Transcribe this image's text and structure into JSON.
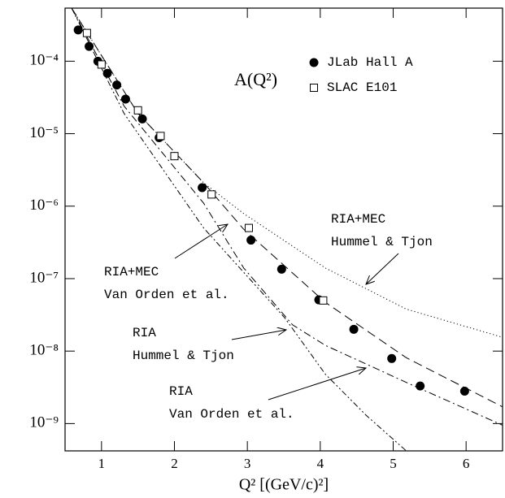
{
  "chart_data": {
    "type": "scatter",
    "inner_label": "A(Q²)",
    "x_label": "Q²  [(GeV/c)²]",
    "xlim": [
      0.5,
      6.5
    ],
    "xticks": [
      1,
      2,
      3,
      4,
      5,
      6
    ],
    "ylim": [
      4.2e-10,
      0.00054
    ],
    "log_y": true,
    "yticks": [
      {
        "value": 0.0001,
        "label": "10⁻⁴"
      },
      {
        "value": 1e-05,
        "label": "10⁻⁵"
      },
      {
        "value": 1e-06,
        "label": "10⁻⁶"
      },
      {
        "value": 1e-07,
        "label": "10⁻⁷"
      },
      {
        "value": 1e-08,
        "label": "10⁻⁸"
      },
      {
        "value": 1e-09,
        "label": "10⁻⁹"
      }
    ],
    "legend": "upper right",
    "series": [
      {
        "name": "JLab Hall A",
        "marker": "circle",
        "color": "#000000",
        "x": [
          0.68,
          0.83,
          0.95,
          1.08,
          1.21,
          1.33,
          1.56,
          1.79,
          2.38,
          3.05,
          3.47,
          3.98,
          4.46,
          4.98,
          5.37,
          5.98
        ],
        "values": [
          0.00027,
          0.00016,
          0.0001,
          6.8e-05,
          4.7e-05,
          3e-05,
          1.6e-05,
          8.8e-06,
          1.8e-06,
          3.4e-07,
          1.35e-07,
          5.1e-08,
          2e-08,
          7.9e-09,
          3.3e-09,
          2.8e-09
        ]
      },
      {
        "name": "SLAC E101",
        "marker": "square",
        "color": "#000000",
        "x": [
          0.8,
          1.0,
          1.5,
          1.81,
          2.0,
          2.51,
          3.02,
          4.04
        ],
        "values": [
          0.000245,
          9e-05,
          2.1e-05,
          9.3e-06,
          4.9e-06,
          1.45e-06,
          5e-07,
          5e-08
        ]
      }
    ],
    "curves": [
      {
        "style": "dotted",
        "x": [
          0.59,
          1.5,
          2.4,
          2.95,
          4.07,
          5.18,
          6.5
        ],
        "values": [
          0.00054,
          1.9e-05,
          2.1e-06,
          7.9e-07,
          1.4e-07,
          3.8e-08,
          1.55e-08
        ]
      },
      {
        "style": "dashed",
        "x": [
          0.59,
          1.5,
          2.4,
          2.95,
          4.07,
          5.18,
          6.5
        ],
        "values": [
          0.00054,
          1.9e-05,
          2.1e-06,
          4.8e-07,
          4.7e-08,
          8.1e-09,
          1.7e-09
        ]
      },
      {
        "style": "dashdot",
        "x": [
          0.59,
          1.31,
          2.4,
          2.95,
          3.62,
          4.07,
          5.18,
          6.5
        ],
        "values": [
          0.00054,
          2.4e-05,
          1.1e-06,
          1.4e-07,
          2.3e-08,
          1.2e-08,
          3.7e-09,
          9.5e-10
        ]
      },
      {
        "style": "dashdotdot",
        "x": [
          0.59,
          1.31,
          2.4,
          3.51,
          4.07,
          4.63,
          5.18
        ],
        "values": [
          0.00054,
          1.9e-05,
          5e-07,
          2.9e-08,
          4.8e-09,
          1.3e-09,
          4.2e-10
        ]
      }
    ],
    "annotations": [
      {
        "lines": [
          "RIA+MEC",
          "Hummel & Tjon"
        ]
      },
      {
        "lines": [
          "RIA+MEC",
          "Van Orden et al."
        ]
      },
      {
        "lines": [
          "RIA",
          "Hummel & Tjon"
        ]
      },
      {
        "lines": [
          "RIA",
          "Van Orden et al."
        ]
      }
    ]
  }
}
